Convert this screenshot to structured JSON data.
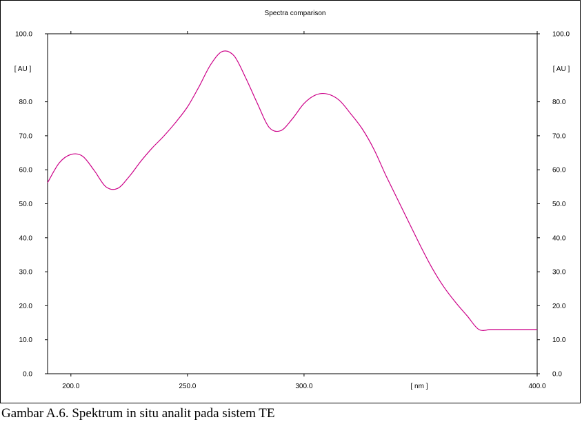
{
  "caption": "Gambar A.6. Spektrum in situ analit pada sistem TE",
  "chart_data": {
    "type": "line",
    "title": "Spectra comparison",
    "xlabel": "[ nm ]",
    "ylabel": "[ AU ]",
    "ylabel_right": "[ AU ]",
    "xlim": [
      190,
      400
    ],
    "ylim": [
      0,
      100
    ],
    "x_ticks": [
      "200.0",
      "250.0",
      "300.0",
      "400.0"
    ],
    "y_ticks": [
      "0.0",
      "10.0",
      "20.0",
      "30.0",
      "40.0",
      "50.0",
      "60.0",
      "70.0",
      "80.0",
      "100.0"
    ],
    "line_color": "#cc0088",
    "grid": false,
    "series": [
      {
        "x": [
          190,
          195,
          200,
          205,
          210,
          215,
          220,
          225,
          230,
          235,
          240,
          245,
          250,
          255,
          260,
          265,
          270,
          275,
          280,
          285,
          290,
          295,
          300,
          305,
          310,
          315,
          320,
          325,
          330,
          335,
          340,
          345,
          350,
          355,
          360,
          365,
          370,
          375,
          380,
          385,
          390,
          395,
          400
        ],
        "y": [
          56.2,
          62.0,
          64.5,
          64.0,
          59.8,
          55.0,
          54.5,
          58.0,
          62.5,
          66.5,
          70.0,
          74.0,
          78.5,
          84.5,
          91.0,
          94.8,
          93.5,
          87.0,
          79.5,
          72.5,
          71.5,
          75.0,
          79.5,
          82.0,
          82.3,
          80.5,
          76.5,
          72.0,
          66.0,
          58.5,
          51.5,
          44.5,
          37.5,
          31.0,
          25.5,
          21.0,
          17.0,
          13.0,
          13.0,
          13.0,
          13.0,
          13.0,
          13.0
        ]
      }
    ]
  }
}
